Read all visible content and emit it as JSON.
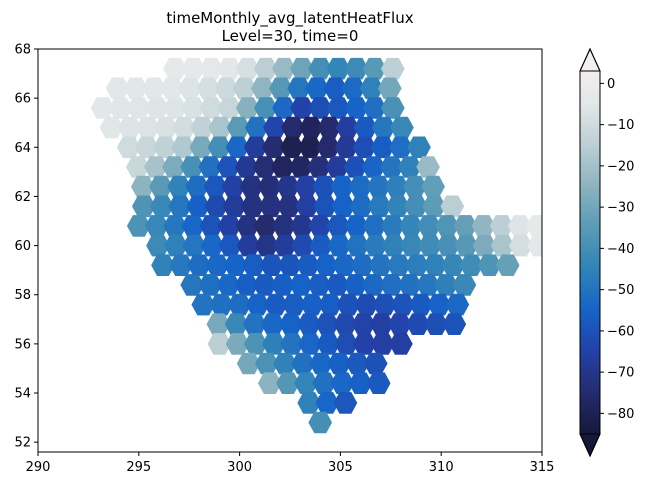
{
  "chart_data": {
    "type": "heatmap",
    "title": "timeMonthly_avg_latentHeatFlux",
    "subtitle": "Level=30, time=0",
    "xlabel": "",
    "ylabel": "",
    "xlim": [
      290,
      315
    ],
    "ylim": [
      51.6,
      68
    ],
    "xticks": [
      "290",
      "295",
      "300",
      "305",
      "310",
      "315"
    ],
    "yticks": [
      "52",
      "54",
      "56",
      "58",
      "60",
      "62",
      "64",
      "66",
      "68"
    ],
    "grid": false,
    "colorbar": {
      "min": -85,
      "max": 3,
      "ticks": [
        "0",
        "−10",
        "−20",
        "−30",
        "−40",
        "−50",
        "−60",
        "−70",
        "−80"
      ],
      "extend": "both",
      "colormap": [
        [
          -85,
          "#15183a"
        ],
        [
          -75,
          "#252b6e"
        ],
        [
          -65,
          "#2341a8"
        ],
        [
          -55,
          "#1663c8"
        ],
        [
          -45,
          "#3083b8"
        ],
        [
          -35,
          "#5a9ab5"
        ],
        [
          -25,
          "#8cb3c0"
        ],
        [
          -15,
          "#bccfd4"
        ],
        [
          -5,
          "#e2e7e8"
        ],
        [
          3,
          "#f2efee"
        ]
      ]
    },
    "field": {
      "description_rows": "latitude rows from 52.8 to 67.2 with value envelope",
      "rows": [
        {
          "lat": 67.2,
          "lon_min": 296.8,
          "lon_max": 307.8,
          "values": [
            [
              297.0,
              -3
            ],
            [
              300.0,
              -5
            ],
            [
              302.5,
              -25
            ],
            [
              304.5,
              -45
            ],
            [
              306.5,
              -40
            ],
            [
              307.8,
              -10
            ]
          ]
        },
        {
          "lat": 66.4,
          "lon_min": 293.5,
          "lon_max": 307.8,
          "values": [
            [
              293.5,
              -5
            ],
            [
              297.0,
              -5
            ],
            [
              300.0,
              -12
            ],
            [
              301.5,
              -28
            ],
            [
              303.0,
              -50
            ],
            [
              305.0,
              -58
            ],
            [
              307.0,
              -42
            ],
            [
              307.8,
              -20
            ]
          ]
        },
        {
          "lat": 65.6,
          "lon_min": 293.2,
          "lon_max": 307.8,
          "values": [
            [
              293.2,
              -5
            ],
            [
              297.0,
              -6
            ],
            [
              299.5,
              -12
            ],
            [
              301.0,
              -35
            ],
            [
              303.0,
              -65
            ],
            [
              305.0,
              -58
            ],
            [
              307.0,
              -50
            ],
            [
              307.8,
              -35
            ]
          ]
        },
        {
          "lat": 64.8,
          "lon_min": 293.2,
          "lon_max": 308.5,
          "values": [
            [
              293.2,
              -5
            ],
            [
              297.0,
              -8
            ],
            [
              299.0,
              -18
            ],
            [
              300.5,
              -45
            ],
            [
              302.5,
              -75
            ],
            [
              304.0,
              -80
            ],
            [
              305.5,
              -65
            ],
            [
              307.0,
              -50
            ],
            [
              308.5,
              -40
            ]
          ]
        },
        {
          "lat": 64.0,
          "lon_min": 294.5,
          "lon_max": 309.0,
          "values": [
            [
              294.5,
              -10
            ],
            [
              297.0,
              -15
            ],
            [
              299.0,
              -40
            ],
            [
              301.0,
              -70
            ],
            [
              303.0,
              -83
            ],
            [
              304.5,
              -75
            ],
            [
              306.0,
              -62
            ],
            [
              307.5,
              -55
            ],
            [
              309.0,
              -45
            ]
          ]
        },
        {
          "lat": 63.2,
          "lon_min": 294.5,
          "lon_max": 309.8,
          "values": [
            [
              294.5,
              -8
            ],
            [
              296.5,
              -25
            ],
            [
              298.5,
              -50
            ],
            [
              300.5,
              -70
            ],
            [
              302.5,
              -80
            ],
            [
              304.5,
              -70
            ],
            [
              306.5,
              -55
            ],
            [
              308.5,
              -45
            ],
            [
              309.8,
              -10
            ]
          ]
        },
        {
          "lat": 62.4,
          "lon_min": 295.2,
          "lon_max": 310.2,
          "values": [
            [
              295.2,
              -25
            ],
            [
              297.0,
              -45
            ],
            [
              299.0,
              -60
            ],
            [
              301.0,
              -75
            ],
            [
              303.0,
              -68
            ],
            [
              305.0,
              -55
            ],
            [
              307.5,
              -48
            ],
            [
              309.5,
              -35
            ],
            [
              310.2,
              -25
            ]
          ]
        },
        {
          "lat": 61.6,
          "lon_min": 294.8,
          "lon_max": 310.8,
          "values": [
            [
              294.8,
              -35
            ],
            [
              296.5,
              -45
            ],
            [
              298.5,
              -60
            ],
            [
              300.5,
              -72
            ],
            [
              302.5,
              -72
            ],
            [
              304.5,
              -58
            ],
            [
              306.5,
              -50
            ],
            [
              308.5,
              -42
            ],
            [
              310.0,
              -32
            ],
            [
              310.8,
              -8
            ]
          ]
        },
        {
          "lat": 60.8,
          "lon_min": 295.0,
          "lon_max": 314.8,
          "values": [
            [
              295.0,
              -38
            ],
            [
              297.0,
              -50
            ],
            [
              299.0,
              -62
            ],
            [
              301.0,
              -76
            ],
            [
              303.0,
              -70
            ],
            [
              305.0,
              -58
            ],
            [
              307.0,
              -50
            ],
            [
              309.0,
              -42
            ],
            [
              311.0,
              -35
            ],
            [
              312.5,
              -20
            ],
            [
              314.0,
              -5
            ],
            [
              314.8,
              -3
            ]
          ]
        },
        {
          "lat": 60.0,
          "lon_min": 295.5,
          "lon_max": 315.0,
          "values": [
            [
              295.5,
              -40
            ],
            [
              297.5,
              -48
            ],
            [
              299.5,
              -58
            ],
            [
              301.0,
              -72
            ],
            [
              302.5,
              -66
            ],
            [
              304.5,
              -55
            ],
            [
              306.5,
              -48
            ],
            [
              309.0,
              -42
            ],
            [
              311.0,
              -38
            ],
            [
              312.5,
              -25
            ],
            [
              314.0,
              -8
            ],
            [
              315.0,
              -3
            ]
          ]
        },
        {
          "lat": 59.2,
          "lon_min": 296.2,
          "lon_max": 313.8,
          "values": [
            [
              296.2,
              -45
            ],
            [
              298.0,
              -52
            ],
            [
              300.0,
              -55
            ],
            [
              302.0,
              -60
            ],
            [
              304.0,
              -56
            ],
            [
              306.0,
              -52
            ],
            [
              308.0,
              -48
            ],
            [
              310.0,
              -45
            ],
            [
              312.0,
              -40
            ],
            [
              313.8,
              -30
            ]
          ]
        },
        {
          "lat": 58.4,
          "lon_min": 297.2,
          "lon_max": 312.0,
          "values": [
            [
              297.2,
              -48
            ],
            [
              299.0,
              -52
            ],
            [
              301.0,
              -58
            ],
            [
              303.0,
              -55
            ],
            [
              305.0,
              -58
            ],
            [
              307.0,
              -52
            ],
            [
              309.0,
              -50
            ],
            [
              310.5,
              -45
            ],
            [
              312.0,
              -40
            ]
          ]
        },
        {
          "lat": 57.6,
          "lon_min": 298.2,
          "lon_max": 311.2,
          "values": [
            [
              298.2,
              -50
            ],
            [
              300.0,
              -52
            ],
            [
              302.0,
              -58
            ],
            [
              304.0,
              -55
            ],
            [
              306.0,
              -62
            ],
            [
              308.0,
              -60
            ],
            [
              310.0,
              -55
            ],
            [
              311.2,
              -52
            ]
          ]
        },
        {
          "lat": 56.8,
          "lon_min": 298.5,
          "lon_max": 311.5,
          "values": [
            [
              298.5,
              -20
            ],
            [
              299.5,
              -40
            ],
            [
              301.0,
              -52
            ],
            [
              303.0,
              -56
            ],
            [
              305.0,
              -62
            ],
            [
              307.0,
              -66
            ],
            [
              309.0,
              -62
            ],
            [
              310.5,
              -60
            ],
            [
              311.5,
              -58
            ]
          ]
        },
        {
          "lat": 56.0,
          "lon_min": 299.0,
          "lon_max": 308.8,
          "values": [
            [
              299.0,
              -15
            ],
            [
              300.0,
              -30
            ],
            [
              301.5,
              -45
            ],
            [
              303.0,
              -52
            ],
            [
              305.0,
              -60
            ],
            [
              306.5,
              -66
            ],
            [
              308.0,
              -66
            ],
            [
              308.8,
              -68
            ]
          ]
        },
        {
          "lat": 55.2,
          "lon_min": 300.0,
          "lon_max": 307.5,
          "values": [
            [
              300.0,
              -25
            ],
            [
              301.5,
              -40
            ],
            [
              303.0,
              -50
            ],
            [
              304.5,
              -55
            ],
            [
              306.0,
              -58
            ],
            [
              307.5,
              -62
            ]
          ]
        },
        {
          "lat": 54.4,
          "lon_min": 301.5,
          "lon_max": 307.0,
          "values": [
            [
              301.5,
              -25
            ],
            [
              302.5,
              -38
            ],
            [
              304.0,
              -50
            ],
            [
              305.5,
              -55
            ],
            [
              307.0,
              -58
            ]
          ]
        },
        {
          "lat": 53.6,
          "lon_min": 303.0,
          "lon_max": 305.8,
          "values": [
            [
              303.0,
              -40
            ],
            [
              304.0,
              -52
            ],
            [
              305.0,
              -58
            ],
            [
              305.8,
              -60
            ]
          ]
        },
        {
          "lat": 52.8,
          "lon_min": 304.0,
          "lon_max": 304.5,
          "values": [
            [
              304.0,
              -40
            ],
            [
              304.5,
              -40
            ]
          ]
        }
      ]
    }
  },
  "colors": {
    "background": "#ffffff",
    "axes": "#000000"
  }
}
